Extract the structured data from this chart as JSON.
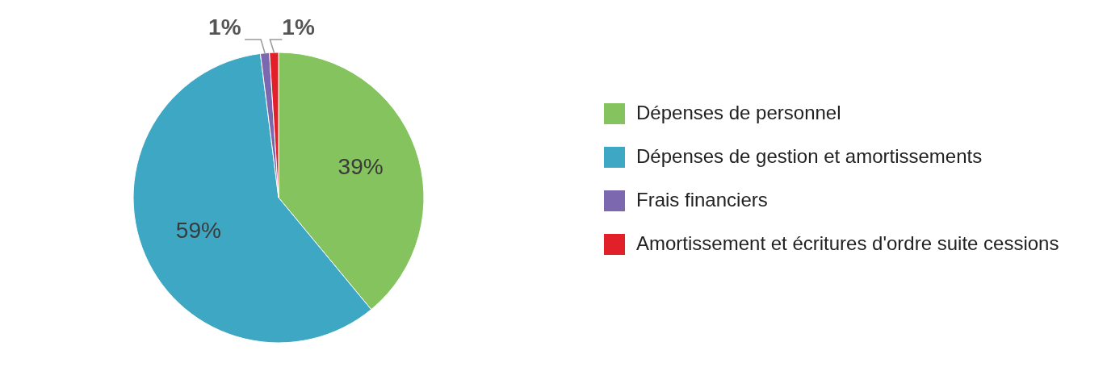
{
  "chart_data": {
    "type": "pie",
    "categories": [
      "Dépenses de personnel",
      "Dépenses de gestion et amortissements",
      "Frais financiers",
      "Amortissement et écritures d'ordre suite cessions"
    ],
    "values": [
      39,
      59,
      1,
      1
    ],
    "colors": [
      "#84c35e",
      "#3ea8c4",
      "#7b68ae",
      "#e2202a"
    ],
    "value_labels": [
      "39%",
      "59%",
      "1%",
      "1%"
    ],
    "legend": "right"
  }
}
